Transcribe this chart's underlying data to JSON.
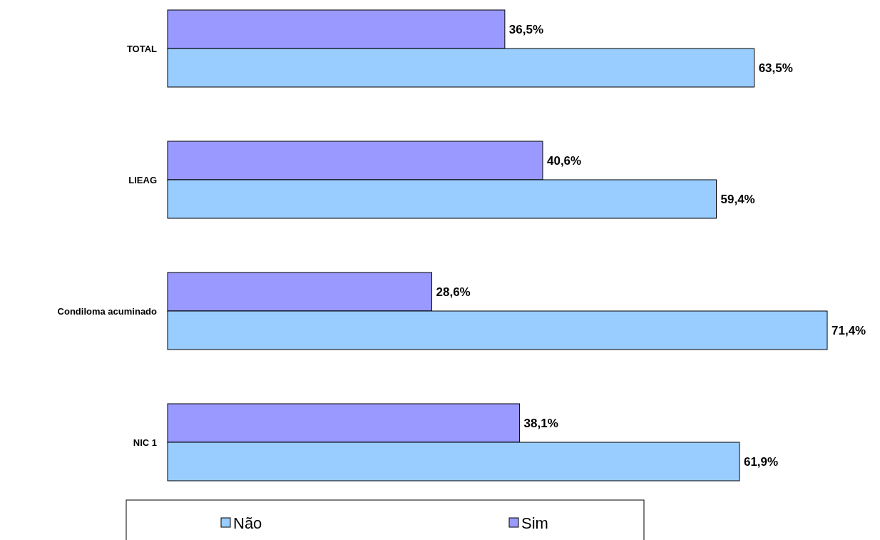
{
  "chart_data": {
    "type": "bar",
    "orientation": "horizontal",
    "categories": [
      "TOTAL",
      "LIEAG",
      "Condiloma acuminado",
      "NIC 1"
    ],
    "series": [
      {
        "name": "Sim",
        "color": "#9999ff",
        "values": [
          36.5,
          40.6,
          28.6,
          38.1
        ],
        "value_labels": [
          "36,5%",
          "40,6%",
          "28,6%",
          "38,1%"
        ]
      },
      {
        "name": "Não",
        "color": "#99ccff",
        "values": [
          63.5,
          59.4,
          71.4,
          61.9
        ],
        "value_labels": [
          "63,5%",
          "59,4%",
          "71,4%",
          "61,9%"
        ]
      }
    ],
    "legend": "bottom"
  }
}
